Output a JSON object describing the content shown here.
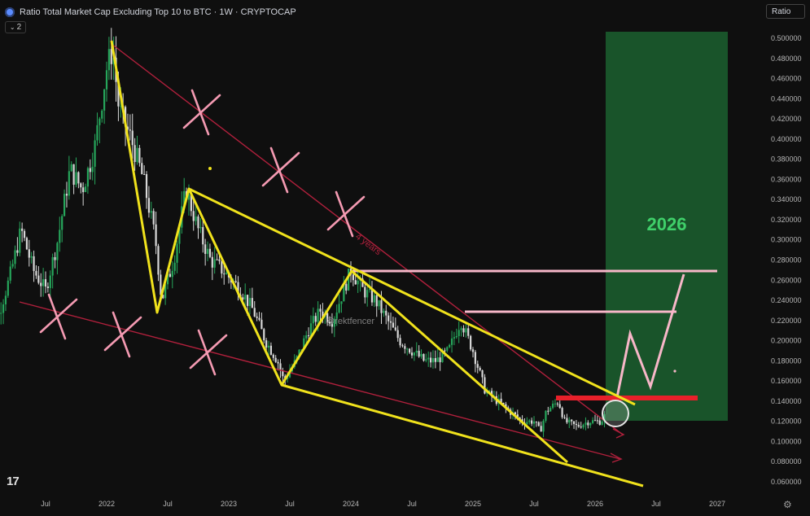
{
  "header": {
    "title": "Ratio Total Market Cap Excluding Top 10 to BTC · 1W · CRYPTOCAP",
    "interval_badge": "2"
  },
  "scale_badge": "Ratio",
  "logo_text": "17",
  "settings_icon": "gear-icon",
  "colors": {
    "background": "#0f0f0f",
    "candle_up": "#26a65b",
    "candle_down": "#d8d8d8",
    "pattern_lines": "#f0e21c",
    "trend_lines": "#b0203c",
    "resistance": "#f7b7c8",
    "cross_marks": "#f49ab2",
    "target_zone": "#1a5a2c",
    "support_bar": "#e8202a"
  },
  "chart_data": {
    "type": "candlestick",
    "title": "Ratio Total Market Cap Excluding Top 10 to BTC · 1W · CRYPTOCAP",
    "ylim": [
      0.04,
      0.51
    ],
    "yticks": [
      "0.500000",
      "0.480000",
      "0.460000",
      "0.440000",
      "0.420000",
      "0.400000",
      "0.380000",
      "0.360000",
      "0.340000",
      "0.320000",
      "0.300000",
      "0.280000",
      "0.260000",
      "0.240000",
      "0.220000",
      "0.200000",
      "0.180000",
      "0.160000",
      "0.140000",
      "0.120000",
      "0.100000",
      "0.080000",
      "0.060000"
    ],
    "xtick_labels": [
      "Jul",
      "2022",
      "Jul",
      "2023",
      "Jul",
      "2024",
      "Jul",
      "2025",
      "Jul",
      "2026",
      "Jul",
      "2027"
    ],
    "price_path": [
      [
        2021.0,
        0.16
      ],
      [
        2021.1,
        0.22
      ],
      [
        2021.2,
        0.26
      ],
      [
        2021.3,
        0.31
      ],
      [
        2021.4,
        0.27
      ],
      [
        2021.5,
        0.25
      ],
      [
        2021.6,
        0.3
      ],
      [
        2021.7,
        0.37
      ],
      [
        2021.8,
        0.35
      ],
      [
        2021.9,
        0.39
      ],
      [
        2022.0,
        0.47
      ],
      [
        2022.05,
        0.49
      ],
      [
        2022.1,
        0.43
      ],
      [
        2022.2,
        0.4
      ],
      [
        2022.3,
        0.36
      ],
      [
        2022.4,
        0.3
      ],
      [
        2022.45,
        0.24
      ],
      [
        2022.55,
        0.28
      ],
      [
        2022.65,
        0.35
      ],
      [
        2022.75,
        0.31
      ],
      [
        2022.85,
        0.28
      ],
      [
        2022.95,
        0.27
      ],
      [
        2023.1,
        0.25
      ],
      [
        2023.2,
        0.23
      ],
      [
        2023.3,
        0.2
      ],
      [
        2023.4,
        0.18
      ],
      [
        2023.45,
        0.16
      ],
      [
        2023.55,
        0.18
      ],
      [
        2023.65,
        0.21
      ],
      [
        2023.75,
        0.23
      ],
      [
        2023.85,
        0.22
      ],
      [
        2024.0,
        0.27
      ],
      [
        2024.1,
        0.25
      ],
      [
        2024.2,
        0.24
      ],
      [
        2024.3,
        0.22
      ],
      [
        2024.4,
        0.2
      ],
      [
        2024.5,
        0.19
      ],
      [
        2024.6,
        0.18
      ],
      [
        2024.7,
        0.18
      ],
      [
        2024.8,
        0.19
      ],
      [
        2024.9,
        0.22
      ],
      [
        2025.0,
        0.19
      ],
      [
        2025.1,
        0.15
      ],
      [
        2025.2,
        0.14
      ],
      [
        2025.3,
        0.13
      ],
      [
        2025.4,
        0.12
      ],
      [
        2025.5,
        0.12
      ],
      [
        2025.55,
        0.11
      ],
      [
        2025.6,
        0.13
      ],
      [
        2025.7,
        0.14
      ],
      [
        2025.75,
        0.12
      ],
      [
        2025.85,
        0.115
      ],
      [
        2025.95,
        0.12
      ],
      [
        2026.05,
        0.12
      ],
      [
        2026.1,
        0.13
      ]
    ],
    "annotations": {
      "watermark": "@rektfencer",
      "trend_label": "4 years",
      "target_label": "2026"
    }
  }
}
